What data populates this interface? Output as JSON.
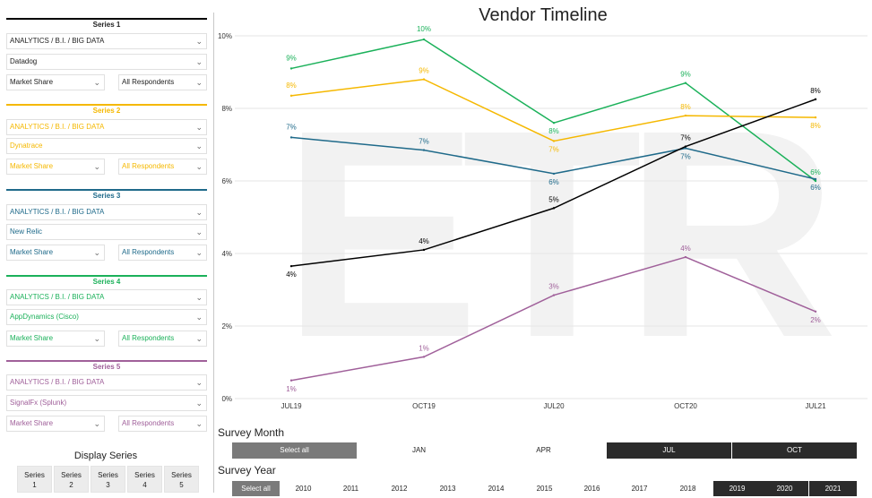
{
  "sidebar": {
    "series": [
      {
        "header": "Series 1",
        "color": "#000000",
        "sector": "ANALYTICS / B.I. / BIG DATA",
        "vendor": "Datadog",
        "metric": "Market Share",
        "respondents": "All Respondents"
      },
      {
        "header": "Series 2",
        "color": "#f5b800",
        "sector": "ANALYTICS / B.I. / BIG DATA",
        "vendor": "Dynatrace",
        "metric": "Market Share",
        "respondents": "All Respondents"
      },
      {
        "header": "Series 3",
        "color": "#1f6a8a",
        "sector": "ANALYTICS / B.I. / BIG DATA",
        "vendor": "New Relic",
        "metric": "Market Share",
        "respondents": "All Respondents"
      },
      {
        "header": "Series 4",
        "color": "#1bb15a",
        "sector": "ANALYTICS / B.I. / BIG DATA",
        "vendor": "AppDynamics (Cisco)",
        "metric": "Market Share",
        "respondents": "All Respondents"
      },
      {
        "header": "Series 5",
        "color": "#a0609a",
        "sector": "ANALYTICS / B.I. / BIG DATA",
        "vendor": "SignalFx (Splunk)",
        "metric": "Market Share",
        "respondents": "All Respondents"
      }
    ],
    "display_title": "Display Series",
    "display_buttons": [
      {
        "word": "Series",
        "num": "1"
      },
      {
        "word": "Series",
        "num": "2"
      },
      {
        "word": "Series",
        "num": "3"
      },
      {
        "word": "Series",
        "num": "4"
      },
      {
        "word": "Series",
        "num": "5"
      }
    ],
    "chevron_icon": "chevron-down-icon"
  },
  "chart_data": {
    "type": "line",
    "title": "Vendor Timeline",
    "categories": [
      "JUL19",
      "OCT19",
      "JUL20",
      "OCT20",
      "JUL21"
    ],
    "y_ticks": [
      "0%",
      "2%",
      "4%",
      "6%",
      "8%",
      "10%"
    ],
    "ylim": [
      0,
      10
    ],
    "grid": true,
    "watermark": "ETR",
    "series": [
      {
        "color": "#1bb15a",
        "values": [
          9.1,
          9.9,
          7.6,
          8.7,
          6.0
        ],
        "labels": [
          "9%",
          "10%",
          "8%",
          "9%",
          "6%"
        ]
      },
      {
        "color": "#f5b800",
        "values": [
          8.35,
          8.8,
          7.1,
          7.8,
          7.75
        ],
        "labels": [
          "8%",
          "9%",
          "7%",
          "8%",
          "8%"
        ]
      },
      {
        "color": "#1f6a8a",
        "values": [
          7.2,
          6.85,
          6.2,
          6.9,
          6.05
        ],
        "labels": [
          "7%",
          "7%",
          "6%",
          "7%",
          "6%"
        ]
      },
      {
        "color": "#000000",
        "values": [
          3.65,
          4.1,
          5.25,
          6.95,
          8.25
        ],
        "labels": [
          "4%",
          "4%",
          "5%",
          "7%",
          "8%"
        ]
      },
      {
        "color": "#a0609a",
        "values": [
          0.5,
          1.15,
          2.85,
          3.9,
          2.4
        ],
        "labels": [
          "1%",
          "1%",
          "3%",
          "4%",
          "2%"
        ]
      }
    ]
  },
  "filters": {
    "month_label": "Survey Month",
    "month_buttons": [
      {
        "label": "Select all",
        "state": "selall"
      },
      {
        "label": "JAN",
        "state": ""
      },
      {
        "label": "APR",
        "state": ""
      },
      {
        "label": "JUL",
        "state": "sel"
      },
      {
        "label": "OCT",
        "state": "sel"
      }
    ],
    "year_label": "Survey Year",
    "year_buttons": [
      {
        "label": "Select all",
        "state": "selall"
      },
      {
        "label": "2010",
        "state": ""
      },
      {
        "label": "2011",
        "state": ""
      },
      {
        "label": "2012",
        "state": ""
      },
      {
        "label": "2013",
        "state": ""
      },
      {
        "label": "2014",
        "state": ""
      },
      {
        "label": "2015",
        "state": ""
      },
      {
        "label": "2016",
        "state": ""
      },
      {
        "label": "2017",
        "state": ""
      },
      {
        "label": "2018",
        "state": ""
      },
      {
        "label": "2019",
        "state": "sel"
      },
      {
        "label": "2020",
        "state": "sel"
      },
      {
        "label": "2021",
        "state": "sel"
      }
    ]
  }
}
